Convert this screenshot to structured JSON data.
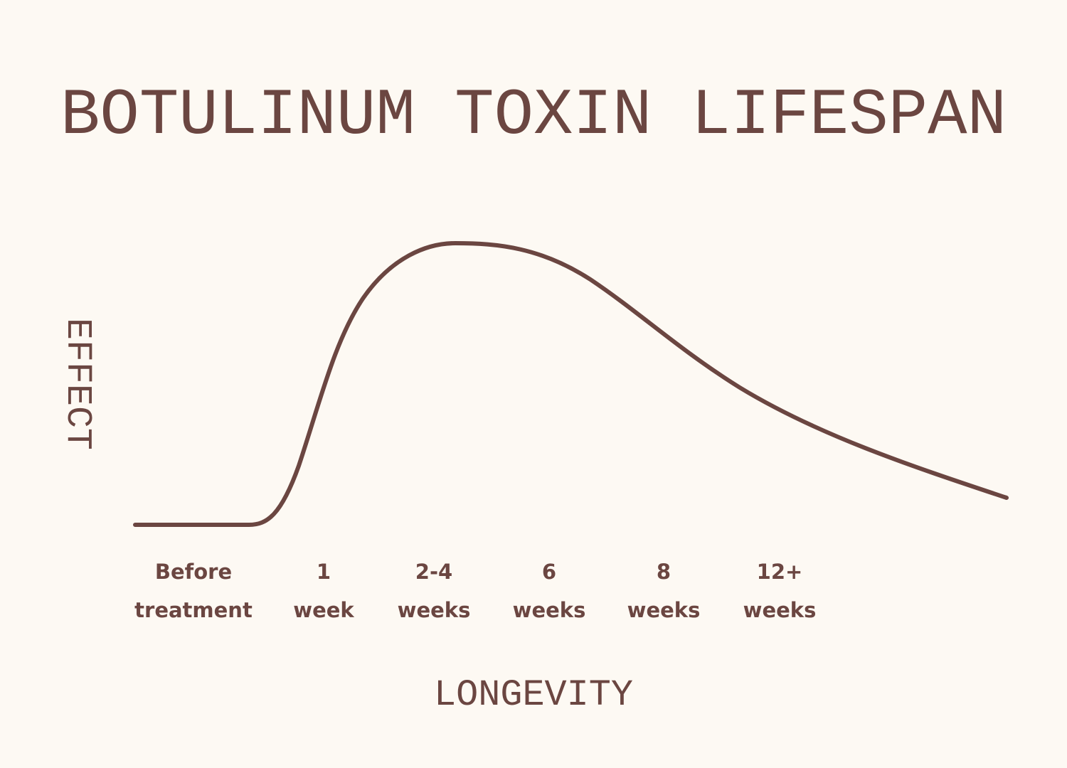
{
  "title": "BOTULINUM TOXIN LIFESPAN",
  "y_axis_label": "EFFECT",
  "x_axis_label": "LONGEVITY",
  "x_labels": [
    [
      "Before",
      "treatment"
    ],
    [
      "1",
      "week"
    ],
    [
      "2-4",
      "weeks"
    ],
    [
      "6",
      "weeks"
    ],
    [
      "8",
      "weeks"
    ],
    [
      "12+",
      "weeks"
    ]
  ]
}
